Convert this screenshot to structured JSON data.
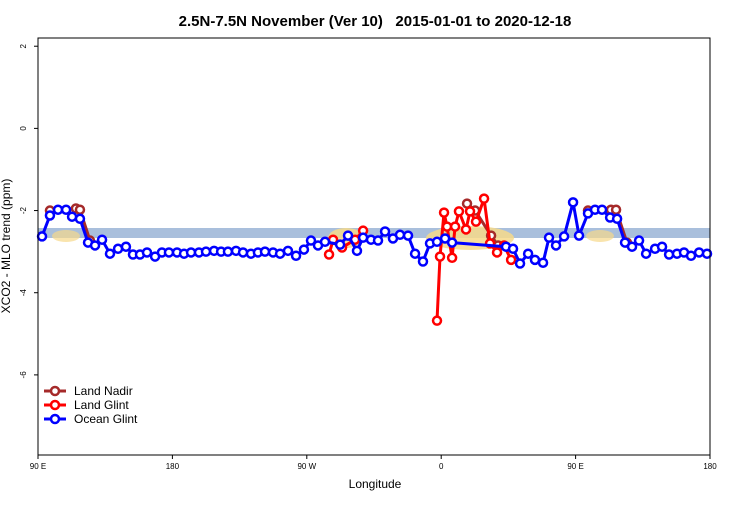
{
  "chart_data": {
    "type": "line",
    "title": "2.5N-7.5N November (Ver 10)   2015-01-01 to 2020-12-18",
    "x_label": "Longitude",
    "y_label": "XCO2 - MLO trend (ppm)",
    "xlim": [
      90,
      540
    ],
    "xticks": [
      {
        "value": 90,
        "label": "90 E"
      },
      {
        "value": 180,
        "label": "180"
      },
      {
        "value": 270,
        "label": "90 W"
      },
      {
        "value": 360,
        "label": "0"
      },
      {
        "value": 450,
        "label": "90 E"
      },
      {
        "value": 540,
        "label": "180"
      }
    ],
    "ylim": [
      -7.95,
      2.2
    ],
    "yticks": [
      2,
      0,
      -2,
      -4,
      -6
    ],
    "legend": "bottom-left",
    "series": [
      {
        "name": "Land Nadir",
        "color": "#a52a2a",
        "x": [
          98,
          115.4,
          118.1,
          124.8,
          null,
          377.3,
          382.7,
          393.4,
          398.1,
          null,
          458.3,
          473.7,
          477.1,
          484.4
        ],
        "values": [
          -2.0,
          -1.95,
          -1.98,
          -2.73,
          null,
          -1.83,
          -2.0,
          -2.61,
          -2.85,
          null,
          -2.0,
          -1.98,
          -1.98,
          -2.78
        ]
      },
      {
        "name": "Land Glint",
        "color": "#ff0000",
        "x": [
          284.9,
          287.6,
          293.6,
          302.3,
          307.7,
          null,
          357.2,
          359.2,
          361.9,
          363.9,
          367.3,
          369.3,
          371.9,
          376.6,
          379.3,
          383.3,
          388.7,
          392.7,
          397.4,
          402.1,
          406.8
        ],
        "values": [
          -3.07,
          -2.71,
          -2.9,
          -2.71,
          -2.49,
          null,
          -4.68,
          -3.12,
          -2.05,
          -2.39,
          -3.15,
          -2.39,
          -2.02,
          -2.46,
          -2.02,
          -2.27,
          -1.71,
          -2.8,
          -3.02,
          -2.85,
          -3.2
        ]
      },
      {
        "name": "Ocean Glint",
        "color": "#0000ff",
        "x": [
          92.7,
          98,
          103.4,
          108.8,
          112.8,
          118.1,
          123.5,
          128.2,
          132.9,
          138.2,
          143.6,
          148.9,
          153.6,
          158.3,
          163,
          168.4,
          173,
          177.7,
          183.1,
          187.8,
          192.5,
          197.8,
          202.5,
          207.9,
          212.6,
          217.2,
          222.6,
          227.3,
          232.6,
          237.3,
          242,
          247.4,
          252.1,
          257.4,
          262.8,
          268.1,
          272.8,
          277.5,
          282.2,
          292.3,
          297.6,
          303.6,
          307.7,
          313,
          317.7,
          322.4,
          327.7,
          332.4,
          337.8,
          342.5,
          347.8,
          352.5,
          357.2,
          362.6,
          367.3,
          403.4,
          408.1,
          412.8,
          418.2,
          422.8,
          428.2,
          432.2,
          436.9,
          442.3,
          448.3,
          452.3,
          458.3,
          463,
          467.7,
          473.1,
          477.8,
          483.1,
          487.8,
          492.5,
          497.2,
          503.2,
          507.9,
          512.6,
          517.9,
          522.6,
          527.3,
          532.7,
          538
        ],
        "values": [
          -2.63,
          -2.12,
          -1.98,
          -1.98,
          -2.15,
          -2.2,
          -2.78,
          -2.85,
          -2.71,
          -3.05,
          -2.93,
          -2.88,
          -3.07,
          -3.07,
          -3.02,
          -3.12,
          -3.02,
          -3.02,
          -3.02,
          -3.05,
          -3.02,
          -3.02,
          -3.0,
          -2.98,
          -3.0,
          -3.0,
          -2.98,
          -3.02,
          -3.05,
          -3.02,
          -3.0,
          -3.02,
          -3.05,
          -2.98,
          -3.1,
          -2.95,
          -2.73,
          -2.85,
          -2.76,
          -2.83,
          -2.61,
          -2.98,
          -2.66,
          -2.71,
          -2.73,
          -2.51,
          -2.68,
          -2.59,
          -2.61,
          -3.05,
          -3.24,
          -2.8,
          -2.76,
          -2.68,
          -2.78,
          -2.88,
          -2.93,
          -3.29,
          -3.05,
          -3.2,
          -3.27,
          -2.66,
          -2.85,
          -2.63,
          -1.8,
          -2.61,
          -2.07,
          -1.98,
          -1.98,
          -2.17,
          -2.2,
          -2.78,
          -2.88,
          -2.73,
          -3.05,
          -2.93,
          -2.88,
          -3.07,
          -3.05,
          -3.02,
          -3.1,
          -3.02,
          -3.05
        ]
      }
    ]
  }
}
